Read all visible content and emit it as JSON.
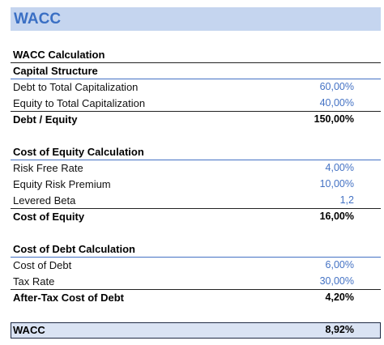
{
  "header": {
    "title": "WACC"
  },
  "heading": "WACC Calculation",
  "sections": [
    {
      "title": "Capital Structure",
      "rows": [
        [
          "Debt to Total Capitalization",
          "60,00%"
        ],
        [
          "Equity to Total Capitalization",
          "40,00%"
        ]
      ],
      "total": [
        "Debt / Equity",
        "150,00%"
      ]
    },
    {
      "title": "Cost of Equity Calculation",
      "rows": [
        [
          "Risk Free Rate",
          "4,00%"
        ],
        [
          "Equity Risk Premium",
          "10,00%"
        ],
        [
          "Levered Beta",
          "1,2"
        ]
      ],
      "total": [
        "Cost of Equity",
        "16,00%"
      ]
    },
    {
      "title": "Cost of Debt Calculation",
      "rows": [
        [
          "Cost of Debt",
          "6,00%"
        ],
        [
          "Tax Rate",
          "30,00%"
        ]
      ],
      "total": [
        "After-Tax Cost of Debt",
        "4,20%"
      ]
    }
  ],
  "result": [
    "WACC",
    "8,92%"
  ]
}
